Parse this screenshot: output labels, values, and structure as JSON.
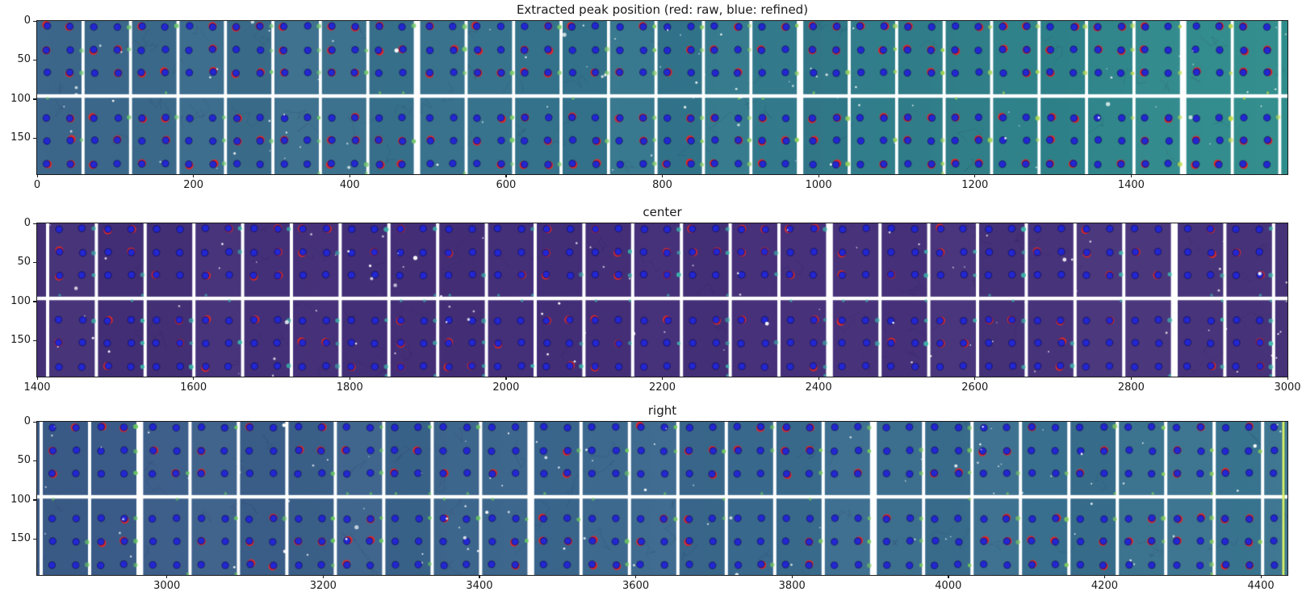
{
  "figure_background": "#ffffff",
  "legend": {
    "red_means": "raw",
    "blue_means": "refined"
  },
  "axis": {
    "spine_color": "#1a1a1a",
    "tick_color": "#1a1a1a",
    "gap_color": "#ffffff",
    "dot_blue": "#2227d2",
    "dot_blue_edge": "rgba(15,10,80,0.55)"
  },
  "chart_data": [
    {
      "type": "heatmap",
      "title": "Extracted peak position (red: raw, blue: refined)",
      "x_ticks": [
        0,
        200,
        400,
        600,
        800,
        1000,
        1200,
        1400
      ],
      "y_ticks": [
        0,
        50,
        100,
        150
      ],
      "x_range": [
        0,
        1600
      ],
      "y_range": [
        0,
        196
      ],
      "peak_rows_y": [
        7,
        37,
        66,
        124,
        153,
        183
      ],
      "module_split_y": 96,
      "bg_stops": [
        "#3e698d",
        "#33768c",
        "#2f8d8b"
      ],
      "accent_dot": "#6cc96a",
      "accent_dot_right": "#c9dd3f",
      "raw_dot": "#e02929",
      "refined_dot": "#2227d2",
      "first_module_w": 55,
      "module_w": 55,
      "gap_w": 3.8,
      "wide_gaps": [
        7,
        15,
        23
      ],
      "red_fraction": 0.5,
      "green_fraction": 0.55,
      "edge_stripe": "",
      "seed": 11
    },
    {
      "type": "heatmap",
      "title": "center",
      "x_ticks": [
        1400,
        1600,
        1800,
        2000,
        2200,
        2400,
        2600,
        2800,
        3000
      ],
      "y_ticks": [
        0,
        50,
        100,
        150
      ],
      "x_range": [
        1400,
        3000
      ],
      "y_range": [
        0,
        196
      ],
      "peak_rows_y": [
        7,
        37,
        66,
        124,
        153,
        183
      ],
      "module_split_y": 96,
      "bg_stops": [
        "#443077",
        "#46317b",
        "#473379"
      ],
      "accent_dot": "#38b2a8",
      "accent_dot_right": "#3fbcae",
      "raw_dot": "#d92b2b",
      "refined_dot": "#2227d2",
      "first_module_w": 11,
      "module_w": 56.4,
      "gap_w": 4,
      "wide_gaps": [
        16,
        23
      ],
      "red_fraction": 0.33,
      "green_fraction": 0.5,
      "edge_stripe": "",
      "seed": 47
    },
    {
      "type": "heatmap",
      "title": "right",
      "x_ticks": [
        3000,
        3200,
        3400,
        3600,
        3800,
        4000,
        4200,
        4400
      ],
      "y_ticks": [
        0,
        50,
        100,
        150
      ],
      "x_range": [
        2834,
        4434
      ],
      "y_range": [
        0,
        196
      ],
      "peak_rows_y": [
        7,
        37,
        66,
        124,
        153,
        183
      ],
      "module_split_y": 96,
      "bg_stops": [
        "#3c5c89",
        "#3a688d",
        "#38748f"
      ],
      "accent_dot": "#66c95c",
      "accent_dot_right": "#8ed054",
      "raw_dot": "#e02929",
      "refined_dot": "#2227d2",
      "first_module_w": 3,
      "module_w": 56,
      "gap_w": 4,
      "wide_gaps": [
        2,
        10,
        17
      ],
      "red_fraction": 0.38,
      "green_fraction": 0.45,
      "edge_stripe": "#b5dc3c",
      "seed": 83
    }
  ]
}
